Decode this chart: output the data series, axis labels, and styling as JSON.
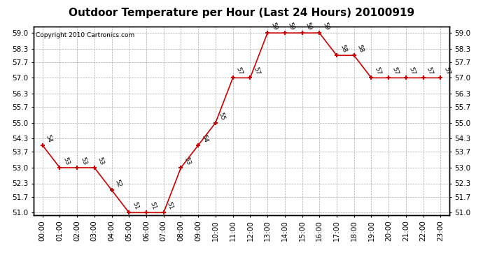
{
  "title": "Outdoor Temperature per Hour (Last 24 Hours) 20100919",
  "copyright": "Copyright 2010 Cartronics.com",
  "hours": [
    "00:00",
    "01:00",
    "02:00",
    "03:00",
    "04:00",
    "05:00",
    "06:00",
    "07:00",
    "08:00",
    "09:00",
    "10:00",
    "11:00",
    "12:00",
    "13:00",
    "14:00",
    "15:00",
    "16:00",
    "17:00",
    "18:00",
    "19:00",
    "20:00",
    "21:00",
    "22:00",
    "23:00"
  ],
  "temps": [
    54,
    53,
    53,
    53,
    52,
    51,
    51,
    51,
    53,
    54,
    55,
    57,
    57,
    59,
    59,
    59,
    59,
    58,
    58,
    57,
    57,
    57,
    57,
    57
  ],
  "ylim_min": 51.0,
  "ylim_max": 59.0,
  "yticks": [
    51.0,
    51.7,
    52.3,
    53.0,
    53.7,
    54.3,
    55.0,
    55.7,
    56.3,
    57.0,
    57.7,
    58.3,
    59.0
  ],
  "line_color": "#cc0000",
  "marker_color": "#cc0000",
  "bg_color": "#ffffff",
  "grid_color": "#aaaaaa",
  "title_fontsize": 11,
  "label_fontsize": 6.5,
  "copyright_fontsize": 6.5,
  "tick_fontsize": 7.5
}
